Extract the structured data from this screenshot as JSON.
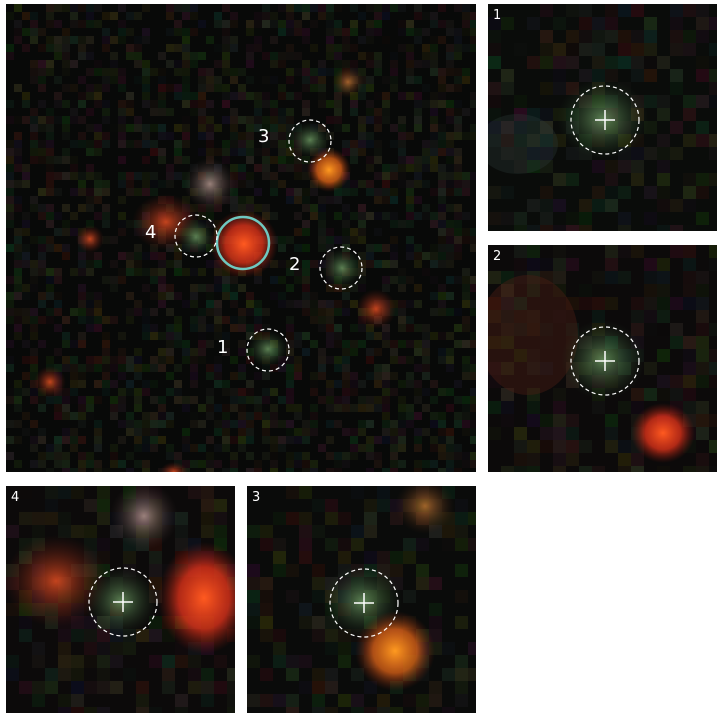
{
  "main_panel": {
    "candidate_labels": [
      "1",
      "2",
      "3",
      "4"
    ]
  },
  "cutouts": [
    {
      "label": "1"
    },
    {
      "label": "2"
    },
    {
      "label": "4"
    },
    {
      "label": "3"
    }
  ],
  "colors": {
    "background": "#ffffff",
    "sky": "#070707",
    "target_circle": "#6fc8c0",
    "marker": "#ffffff",
    "red_source": "#ff4a1a",
    "orange_source": "#ff8a20",
    "green_source": "#5f8a5a"
  }
}
